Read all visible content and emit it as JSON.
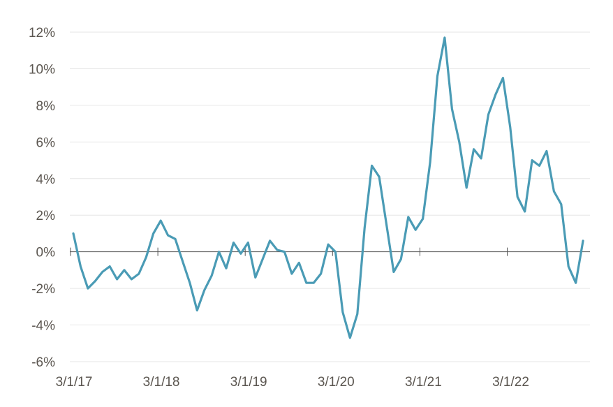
{
  "chart_data": {
    "type": "line",
    "title": "",
    "xlabel": "",
    "ylabel": "",
    "ylim": [
      -6,
      12
    ],
    "yticks": [
      "12%",
      "10%",
      "8%",
      "6%",
      "4%",
      "2%",
      "0%",
      "-2%",
      "-4%",
      "-6%"
    ],
    "ytick_values": [
      12,
      10,
      8,
      6,
      4,
      2,
      0,
      -2,
      -4,
      -6
    ],
    "xticks": [
      "3/1/17",
      "3/1/18",
      "3/1/19",
      "3/1/20",
      "3/1/21",
      "3/1/22"
    ],
    "grid": true,
    "line_color": "#4a9bb5",
    "x": [
      "2017-03",
      "2017-04",
      "2017-05",
      "2017-06",
      "2017-07",
      "2017-08",
      "2017-09",
      "2017-10",
      "2017-11",
      "2017-12",
      "2018-01",
      "2018-02",
      "2018-03",
      "2018-04",
      "2018-05",
      "2018-06",
      "2018-07",
      "2018-08",
      "2018-09",
      "2018-10",
      "2018-11",
      "2018-12",
      "2019-01",
      "2019-02",
      "2019-03",
      "2019-04",
      "2019-05",
      "2019-06",
      "2019-07",
      "2019-08",
      "2019-09",
      "2019-10",
      "2019-11",
      "2019-12",
      "2020-01",
      "2020-02",
      "2020-03",
      "2020-04",
      "2020-05",
      "2020-06",
      "2020-07",
      "2020-08",
      "2020-09",
      "2020-10",
      "2020-11",
      "2020-12",
      "2021-01",
      "2021-02",
      "2021-03",
      "2021-04",
      "2021-05",
      "2021-06",
      "2021-07",
      "2021-08",
      "2021-09",
      "2021-10",
      "2021-11",
      "2021-12",
      "2022-01",
      "2022-02",
      "2022-03",
      "2022-04",
      "2022-05",
      "2022-06",
      "2022-07",
      "2022-08",
      "2022-09",
      "2022-10",
      "2022-11",
      "2022-12",
      "2023-01"
    ],
    "series": [
      {
        "values": [
          1.0,
          -0.8,
          -2.0,
          -1.6,
          -1.1,
          -0.8,
          -1.5,
          -1.0,
          -1.5,
          -1.2,
          -0.3,
          1.0,
          1.7,
          0.9,
          0.7,
          -0.5,
          -1.7,
          -3.2,
          -2.1,
          -1.3,
          0.0,
          -0.9,
          0.5,
          -0.1,
          0.5,
          -1.4,
          -0.4,
          0.6,
          0.1,
          0.0,
          -1.2,
          -0.6,
          -1.7,
          -1.7,
          -1.2,
          0.4,
          0.0,
          -3.3,
          -4.7,
          -3.4,
          1.3,
          4.7,
          4.1,
          1.5,
          -1.1,
          -0.4,
          1.9,
          1.2,
          1.8,
          4.9,
          9.6,
          11.7,
          7.8,
          6.0,
          3.5,
          5.6,
          5.1,
          7.5,
          8.6,
          9.5,
          6.8,
          3.0,
          2.2,
          5.0,
          4.7,
          5.5,
          3.3,
          2.6,
          -0.8,
          -1.7,
          0.6
        ]
      }
    ]
  }
}
